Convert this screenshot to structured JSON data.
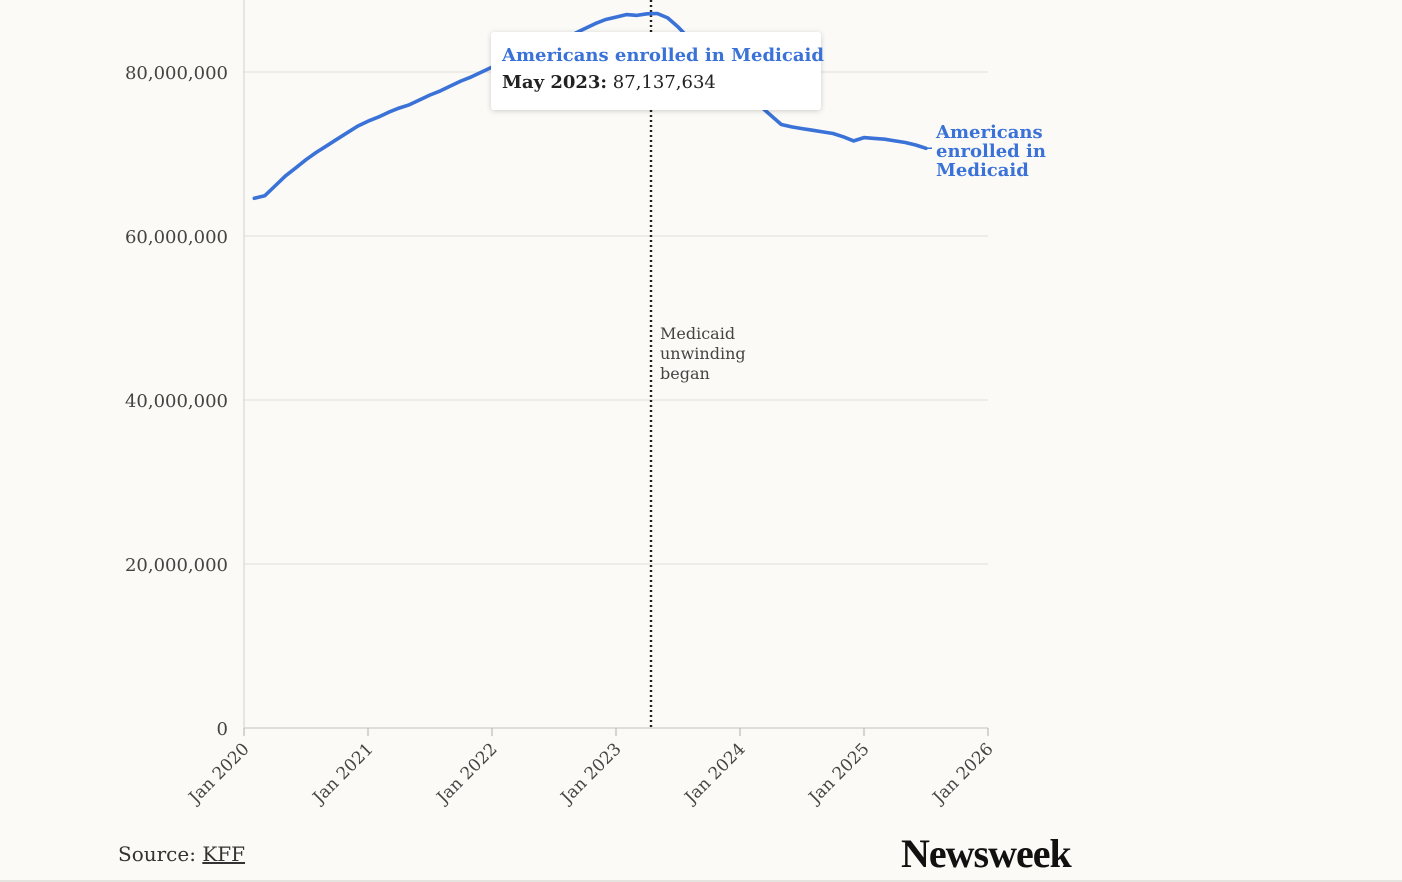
{
  "chart_data": {
    "type": "line",
    "title": "",
    "xlabel": "",
    "ylabel": "",
    "ylim": [
      0,
      90000000
    ],
    "xlim": [
      "2020-01",
      "2026-01"
    ],
    "yticks": [
      0,
      20000000,
      40000000,
      60000000,
      80000000
    ],
    "ytick_labels": [
      "0",
      "20,000,000",
      "40,000,000",
      "60,000,000",
      "80,000,000"
    ],
    "xticks": [
      "2020-01",
      "2021-01",
      "2022-01",
      "2023-01",
      "2024-01",
      "2025-01",
      "2026-01"
    ],
    "xtick_labels": [
      "Jan 2020",
      "Jan 2021",
      "Jan 2022",
      "Jan 2023",
      "Jan 2024",
      "Jan 2025",
      "Jan 2026"
    ],
    "grid": true,
    "series": [
      {
        "name": "Americans enrolled in Medicaid",
        "color": "#3a72d8",
        "x": [
          "2020-02",
          "2020-03",
          "2020-04",
          "2020-05",
          "2020-06",
          "2020-07",
          "2020-08",
          "2020-09",
          "2020-10",
          "2020-11",
          "2020-12",
          "2021-01",
          "2021-02",
          "2021-03",
          "2021-04",
          "2021-05",
          "2021-06",
          "2021-07",
          "2021-08",
          "2021-09",
          "2021-10",
          "2021-11",
          "2021-12",
          "2022-01",
          "2022-02",
          "2022-03",
          "2022-04",
          "2022-05",
          "2022-06",
          "2022-07",
          "2022-08",
          "2022-09",
          "2022-10",
          "2022-11",
          "2022-12",
          "2023-01",
          "2023-02",
          "2023-03",
          "2023-04",
          "2023-05",
          "2023-06",
          "2023-07",
          "2023-08",
          "2023-09",
          "2023-10",
          "2023-11",
          "2023-12",
          "2024-01",
          "2024-02",
          "2024-03",
          "2024-04",
          "2024-05",
          "2024-06",
          "2024-07",
          "2024-08",
          "2024-09",
          "2024-10",
          "2024-11",
          "2024-12",
          "2025-01",
          "2025-02",
          "2025-03",
          "2025-04",
          "2025-05",
          "2025-06",
          "2025-07"
        ],
        "y": [
          64600000,
          64900000,
          66100000,
          67300000,
          68300000,
          69300000,
          70200000,
          71000000,
          71800000,
          72600000,
          73400000,
          74000000,
          74500000,
          75100000,
          75600000,
          76000000,
          76600000,
          77200000,
          77700000,
          78300000,
          78900000,
          79400000,
          80000000,
          80600000,
          81100000,
          81600000,
          82200000,
          82700000,
          83200000,
          83700000,
          84200000,
          84700000,
          85300000,
          85900000,
          86400000,
          86700000,
          87000000,
          86900000,
          87100000,
          87137634,
          86600000,
          85500000,
          84200000,
          83100000,
          81900000,
          80700000,
          79500000,
          78300000,
          77000000,
          75800000,
          74700000,
          73600000,
          73300000,
          73100000,
          72900000,
          72700000,
          72500000,
          72100000,
          71600000,
          72000000,
          71900000,
          71800000,
          71600000,
          71400000,
          71100000,
          70700000
        ]
      }
    ],
    "annotations": [
      {
        "x": "2023-04",
        "text": [
          "Medicaid",
          "unwinding",
          "began"
        ],
        "style": "dotted-vertical-line"
      }
    ],
    "line_end_label": [
      "Americans",
      "enrolled in",
      "Medicaid"
    ]
  },
  "tooltip": {
    "title": "Americans enrolled in Medicaid",
    "date": "May 2023:",
    "value": "87,137,634"
  },
  "footer": {
    "source_prefix": "Source:",
    "source_link": "KFF",
    "brand": "Newsweek"
  },
  "colors": {
    "series": "#3a72d8",
    "background": "#fbfaf6",
    "grid": "#e6e4de"
  }
}
